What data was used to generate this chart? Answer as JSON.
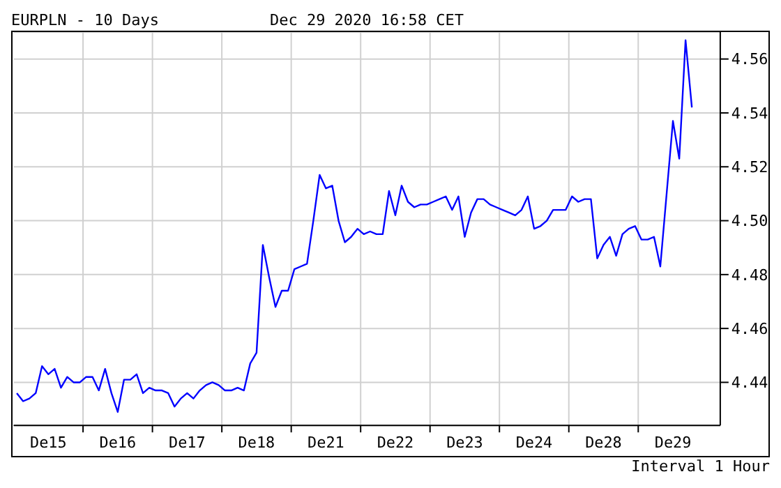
{
  "chart_data": {
    "type": "line",
    "title": "EURPLN - 10 Days",
    "subtitle": "Dec 29 2020 16:58 CET",
    "annotations": [
      "Interval 1 Hour"
    ],
    "categories": [
      null,
      null,
      null,
      null,
      null,
      "De15",
      null,
      null,
      null,
      null,
      null,
      null,
      null,
      null,
      null,
      null,
      "De16",
      null,
      null,
      null,
      null,
      null,
      null,
      null,
      null,
      null,
      null,
      "De17",
      null,
      null,
      null,
      null,
      null,
      null,
      null,
      null,
      null,
      null,
      "De18",
      null,
      null,
      null,
      null,
      null,
      null,
      null,
      null,
      null,
      null,
      "De21",
      null,
      null,
      null,
      null,
      null,
      null,
      null,
      null,
      null,
      null,
      "De22",
      null,
      null,
      null,
      null,
      null,
      null,
      null,
      null,
      null,
      null,
      "De23",
      null,
      null,
      null,
      null,
      null,
      null,
      null,
      null,
      null,
      null,
      "De24",
      null,
      null,
      null,
      null,
      null,
      null,
      null,
      null,
      null,
      null,
      "De28",
      null,
      null,
      null,
      null,
      null,
      null,
      null,
      null,
      null,
      null,
      "De29",
      null,
      null,
      null,
      null,
      null,
      null,
      null
    ],
    "series": [
      {
        "color": "#0000ff",
        "values": [
          4.436,
          4.433,
          4.434,
          4.436,
          4.446,
          4.443,
          4.445,
          4.438,
          4.442,
          4.44,
          4.44,
          4.442,
          4.442,
          4.437,
          4.445,
          4.436,
          4.429,
          4.441,
          4.441,
          4.443,
          4.436,
          4.438,
          4.437,
          4.437,
          4.436,
          4.431,
          4.434,
          4.436,
          4.434,
          4.437,
          4.439,
          4.44,
          4.439,
          4.437,
          4.437,
          4.438,
          4.437,
          4.447,
          4.451,
          4.491,
          4.479,
          4.468,
          4.474,
          4.474,
          4.482,
          4.483,
          4.484,
          4.5,
          4.517,
          4.512,
          4.513,
          4.5,
          4.492,
          4.494,
          4.497,
          4.495,
          4.496,
          4.495,
          4.495,
          4.511,
          4.502,
          4.513,
          4.507,
          4.505,
          4.506,
          4.506,
          4.507,
          4.508,
          4.509,
          4.504,
          4.509,
          4.494,
          4.503,
          4.508,
          4.508,
          4.506,
          4.505,
          4.504,
          4.503,
          4.502,
          4.504,
          4.509,
          4.497,
          4.498,
          4.5,
          4.504,
          4.504,
          4.504,
          4.509,
          4.507,
          4.508,
          4.508,
          4.486,
          4.491,
          4.494,
          4.487,
          4.495,
          4.497,
          4.498,
          4.493,
          4.493,
          4.494,
          4.483,
          4.51,
          4.537,
          4.523,
          4.567,
          4.542,
          null,
          null,
          null,
          null
        ]
      }
    ],
    "ylim": [
      4.424,
      4.57
    ],
    "yticks": [
      4.44,
      4.46,
      4.48,
      {
        "value": 4.5,
        "label": "4.50"
      },
      4.52,
      4.54,
      4.56
    ],
    "grid": true,
    "marker": "none",
    "line_style": "solid"
  }
}
